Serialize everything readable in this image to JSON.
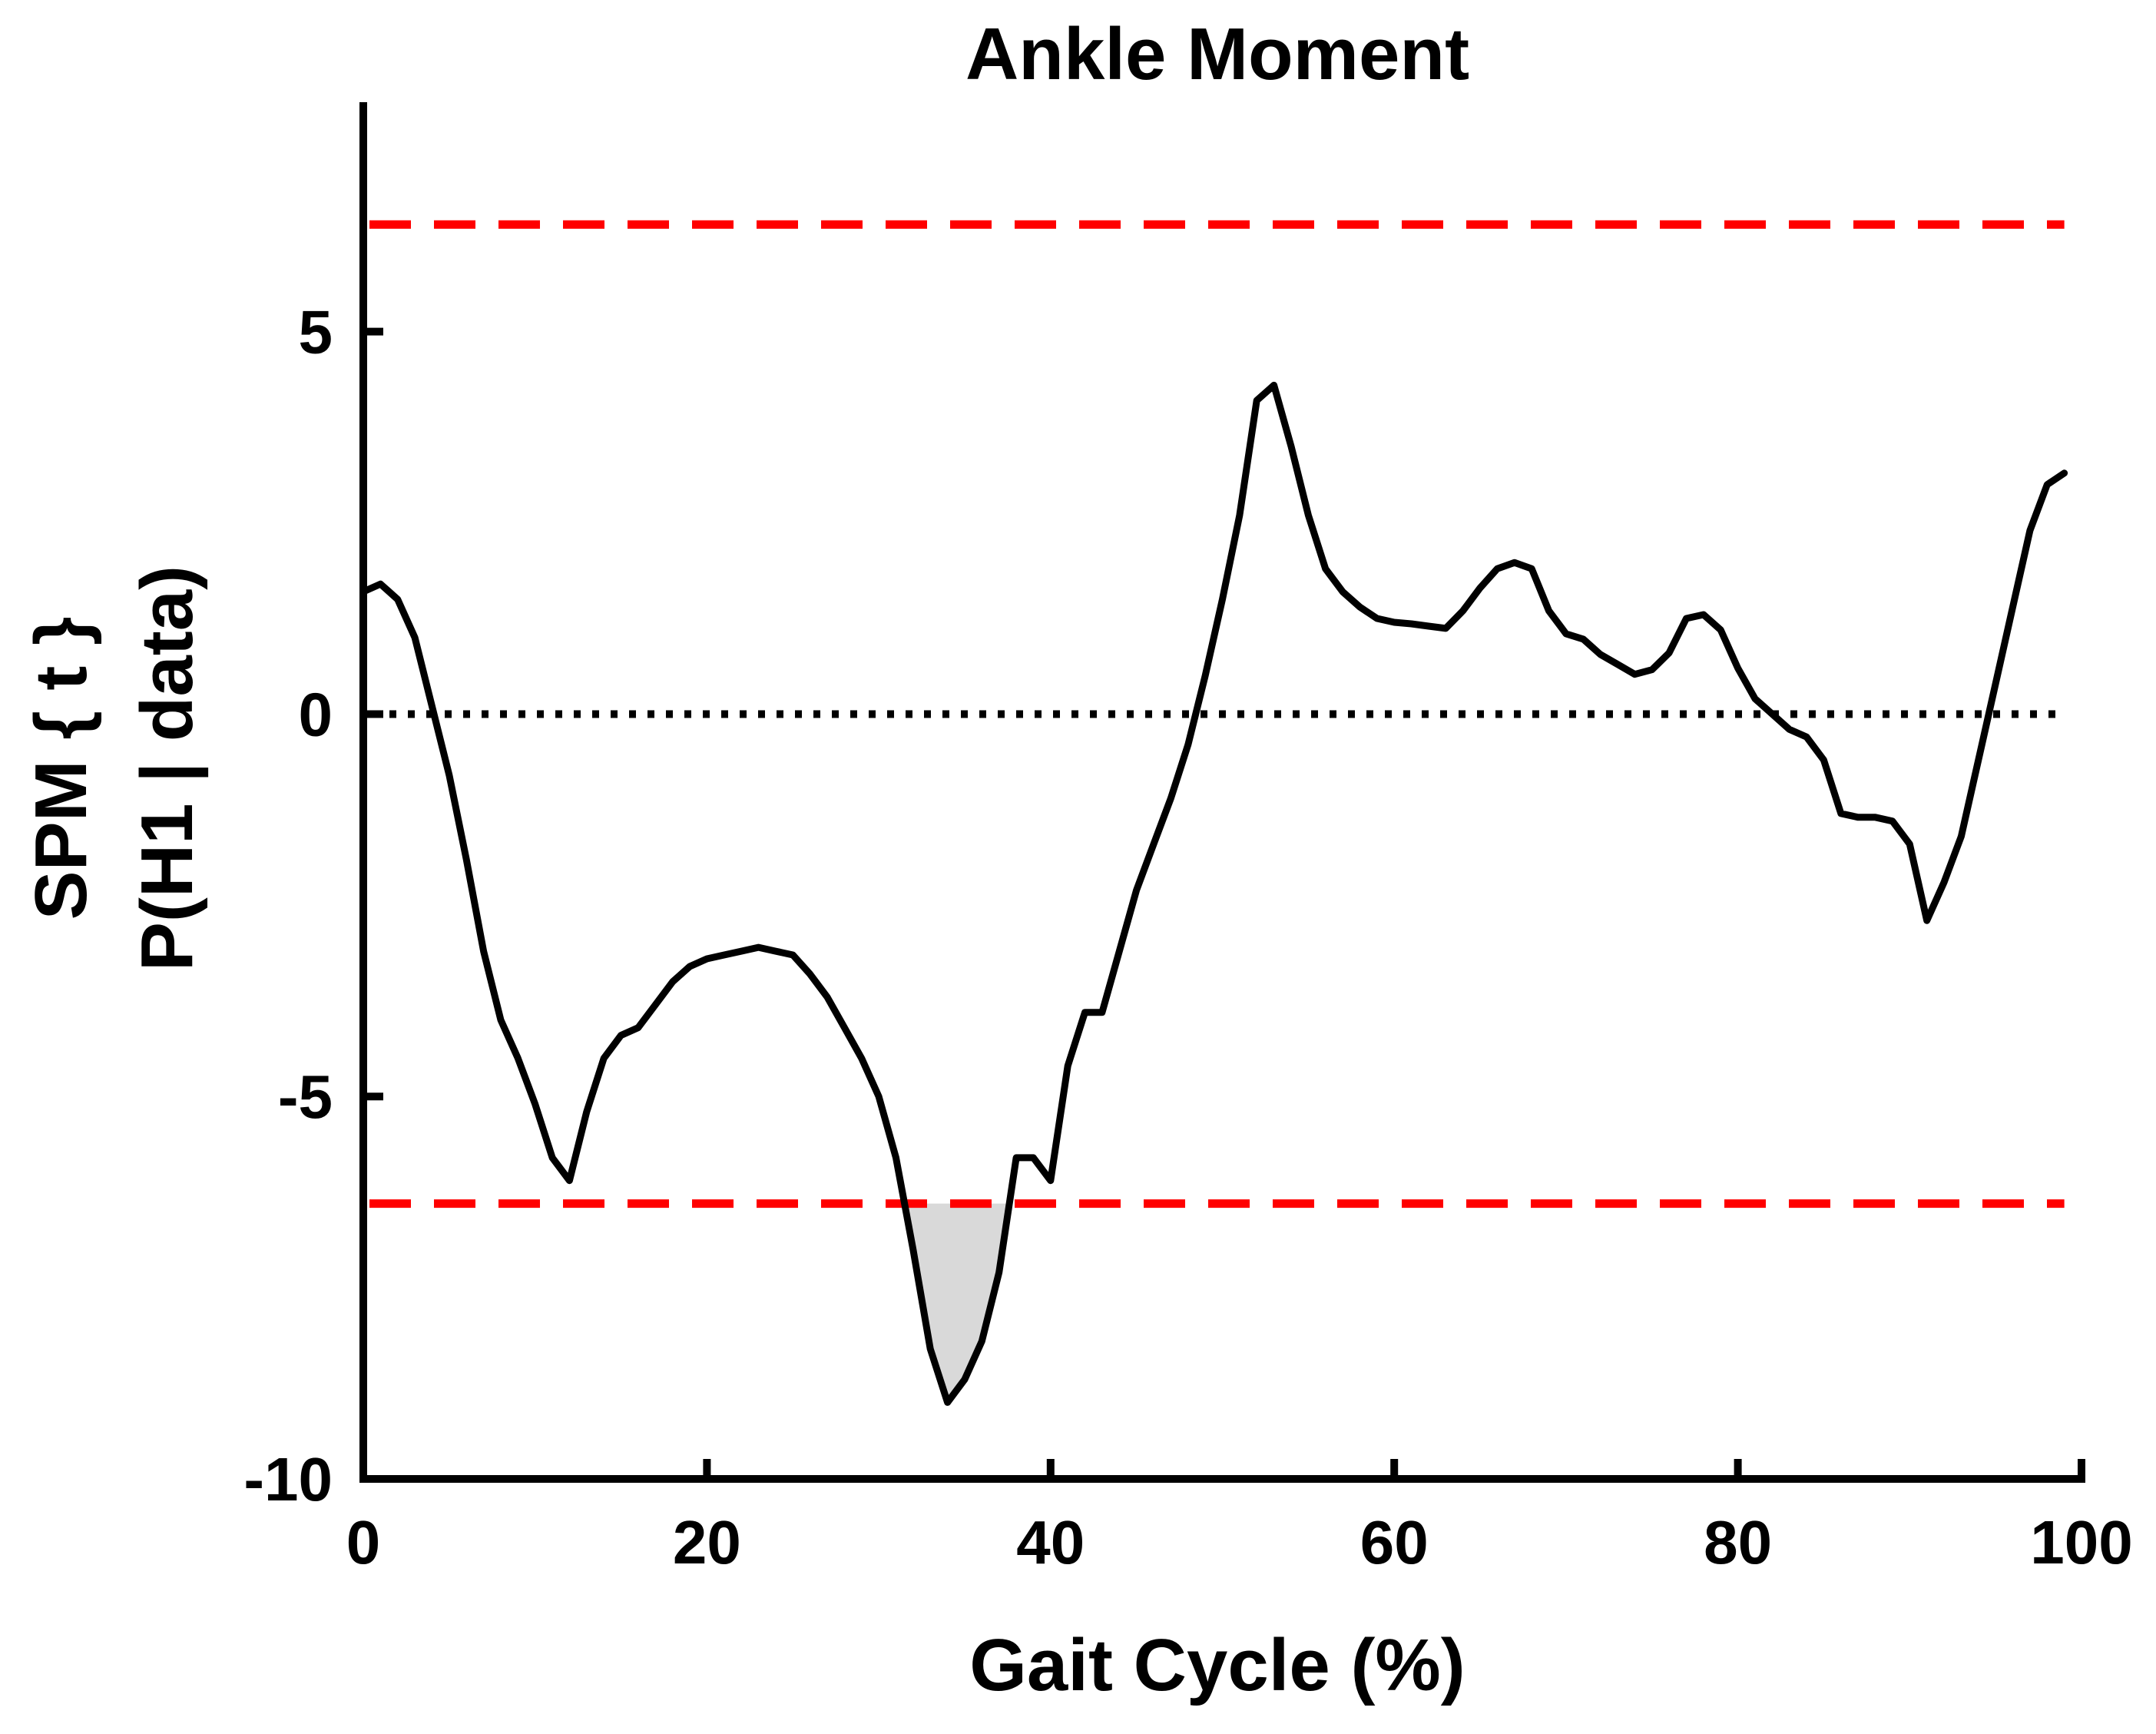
{
  "chart_data": {
    "type": "line",
    "title": "Ankle Moment",
    "xlabel": "Gait Cycle (%)",
    "ylabel_lines": [
      "SPM { t }",
      "P(H1 | data)"
    ],
    "xlim": [
      0,
      100
    ],
    "ylim": [
      -10,
      8
    ],
    "xticks": [
      0,
      20,
      40,
      60,
      80,
      100
    ],
    "yticks": [
      -10,
      -5,
      0,
      5
    ],
    "xtick_labels": [
      "0",
      "20",
      "40",
      "60",
      "80",
      "100"
    ],
    "ytick_labels": [
      "-10",
      "-5",
      "0",
      "5"
    ],
    "grid": false,
    "series": [
      {
        "color": "#000000",
        "x": [
          0,
          1,
          2,
          3,
          4,
          5,
          6,
          7,
          8,
          9,
          10,
          11,
          12,
          13,
          14,
          15,
          16,
          17,
          18,
          19,
          20,
          21,
          22,
          23,
          24,
          25,
          26,
          27,
          28,
          29,
          30,
          31,
          32,
          33,
          34,
          35,
          36,
          37,
          38,
          39,
          40,
          41,
          42,
          43,
          44,
          45,
          46,
          47,
          48,
          49,
          50,
          51,
          52,
          53,
          54,
          55,
          56,
          57,
          58,
          59,
          60,
          61,
          62,
          63,
          64,
          65,
          66,
          67,
          68,
          69,
          70,
          71,
          72,
          73,
          74,
          75,
          76,
          77,
          78,
          79,
          80,
          81,
          82,
          83,
          84,
          85,
          86,
          87,
          88,
          89,
          90,
          91,
          92,
          93,
          94,
          95,
          96,
          97,
          98,
          99
        ],
        "y": [
          1.6,
          1.7,
          1.5,
          1.0,
          0.1,
          -0.8,
          -1.9,
          -3.1,
          -4.0,
          -4.5,
          -5.1,
          -5.8,
          -6.1,
          -5.2,
          -4.5,
          -4.2,
          -4.1,
          -3.8,
          -3.5,
          -3.3,
          -3.2,
          -3.15,
          -3.1,
          -3.05,
          -3.1,
          -3.15,
          -3.4,
          -3.7,
          -4.1,
          -4.5,
          -5.0,
          -5.8,
          -7.0,
          -8.3,
          -9.0,
          -8.7,
          -8.2,
          -7.3,
          -5.8,
          -5.8,
          -6.1,
          -4.6,
          -3.9,
          -3.9,
          -3.1,
          -2.3,
          -1.7,
          -1.1,
          -0.4,
          0.5,
          1.5,
          2.6,
          4.1,
          4.3,
          3.5,
          2.6,
          1.9,
          1.6,
          1.4,
          1.25,
          1.2,
          1.18,
          1.15,
          1.12,
          1.35,
          1.65,
          1.9,
          1.98,
          1.9,
          1.35,
          1.05,
          0.98,
          0.78,
          0.65,
          0.52,
          0.58,
          0.8,
          1.25,
          1.3,
          1.1,
          0.6,
          0.2,
          0.0,
          -0.2,
          -0.3,
          -0.6,
          -1.3,
          -1.35,
          -1.35,
          -1.4,
          -1.7,
          -2.7,
          -2.2,
          -1.6,
          -0.6,
          0.4,
          1.4,
          2.4,
          3.0,
          3.15
        ]
      }
    ],
    "thresholds": [
      6.4,
      -6.4
    ],
    "threshold_color": "#ff0000",
    "zero_line_color": "#000000",
    "fill_color": "#d9d9d9"
  }
}
